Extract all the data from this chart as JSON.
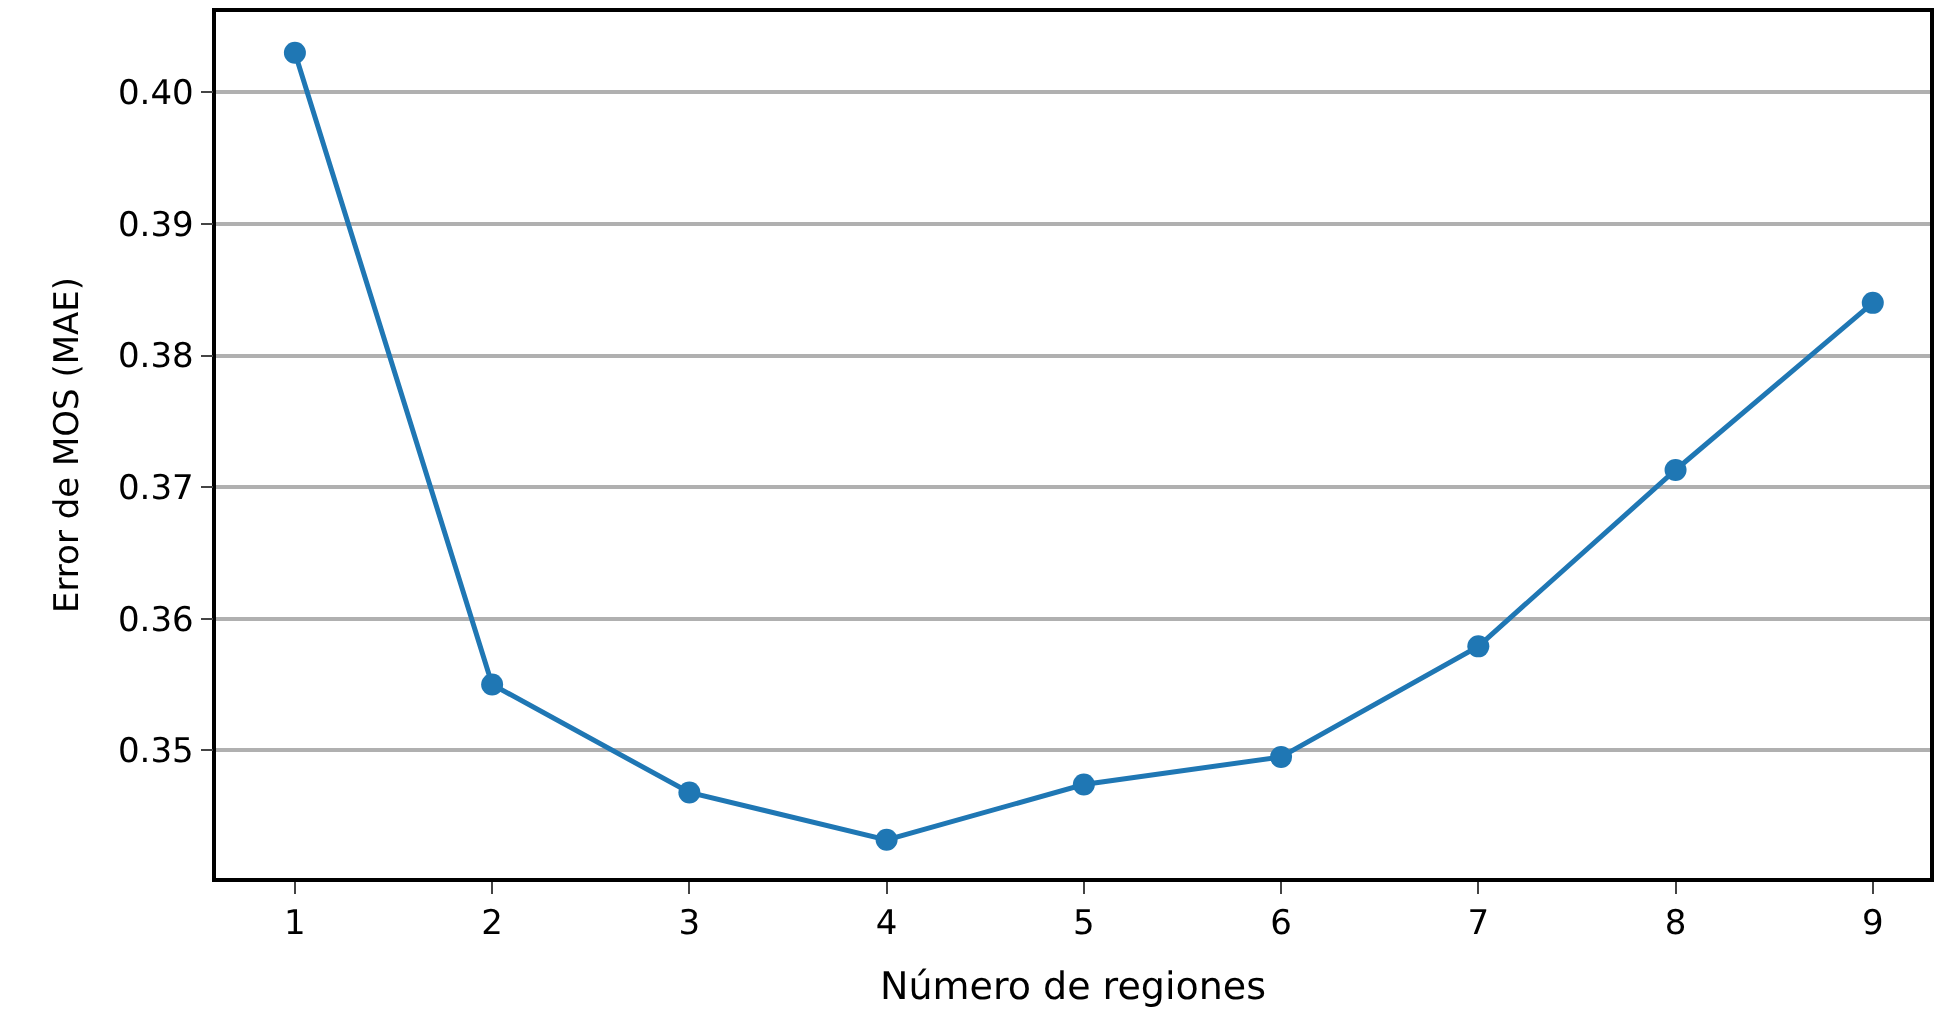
{
  "chart_data": {
    "type": "line",
    "xlabel": "Número de regiones",
    "ylabel": "Error de MOS (MAE)",
    "x": [
      1,
      2,
      3,
      4,
      5,
      6,
      7,
      8,
      9
    ],
    "series": [
      {
        "color": "#1f77b4",
        "values": [
          0.403,
          0.355,
          0.3468,
          0.3432,
          0.3474,
          0.3495,
          0.3579,
          0.3713,
          0.384
        ]
      }
    ],
    "xlim": [
      0.6,
      9.29
    ],
    "xticks": [
      1,
      2,
      3,
      4,
      5,
      6,
      7,
      8,
      9
    ],
    "ylim": [
      0.3403,
      0.4061
    ],
    "yticks": [
      0.35,
      0.36,
      0.37,
      0.38,
      0.39,
      {
        "value": 0.4,
        "label": "0.40"
      }
    ],
    "grid": "y",
    "marker": "circle",
    "line_style": "solid"
  }
}
